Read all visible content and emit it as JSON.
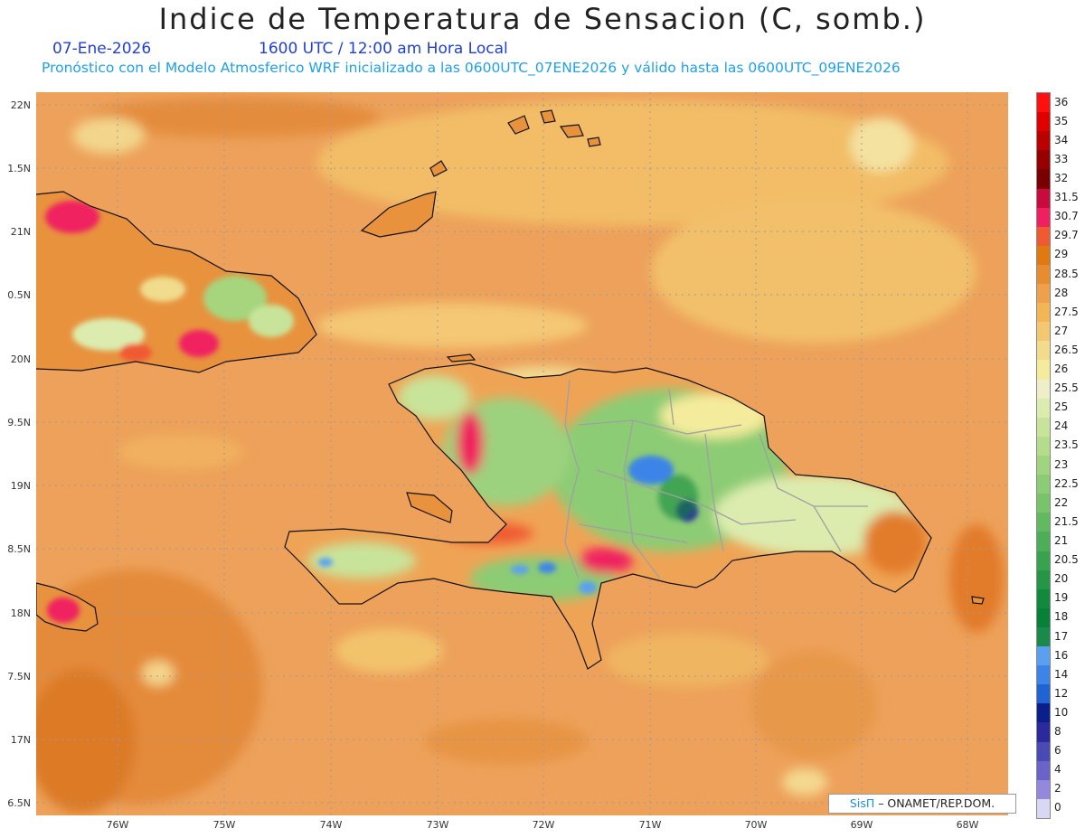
{
  "header": {
    "title": "Indice de Temperatura de Sensacion (C, somb.)",
    "date": "07-Ene-2026",
    "time": "1600 UTC / 12:00 am Hora Local",
    "subtitle": "Pronóstico con el Modelo Atmosferico WRF inicializado a las 0600UTC_07ENE2026 y válido hasta las  0600UTC_09ENE2026"
  },
  "map": {
    "lat_labels": [
      "22N",
      "1.5N",
      "21N",
      "0.5N",
      "20N",
      "9.5N",
      "19N",
      "8.5N",
      "18N",
      "7.5N",
      "17N",
      "6.5N"
    ],
    "lon_labels": [
      "76W",
      "75W",
      "74W",
      "73W",
      "72W",
      "71W",
      "70W",
      "69W",
      "68W"
    ],
    "colors": {
      "ocean": "#eda15a",
      "coast": "#111111",
      "borders": "#999999"
    }
  },
  "legend": {
    "levels": [
      "36",
      "35",
      "34",
      "33",
      "32",
      "31.5",
      "30.7",
      "29.7",
      "29",
      "28.5",
      "28",
      "27.5",
      "27",
      "26.5",
      "26",
      "25.5",
      "25",
      "24",
      "23.5",
      "23",
      "22.5",
      "22",
      "21.5",
      "21",
      "20.5",
      "20",
      "19",
      "18",
      "17",
      "16",
      "14",
      "12",
      "10",
      "8",
      "6",
      "4",
      "2",
      "0"
    ],
    "colors": [
      "#ff1010",
      "#e00000",
      "#bb0000",
      "#980000",
      "#7a0000",
      "#c80a3c",
      "#f02060",
      "#f05a30",
      "#e07a10",
      "#e88c30",
      "#f0a04a",
      "#f4b654",
      "#f4c870",
      "#f2dc8c",
      "#f4ec9c",
      "#eeeec8",
      "#dcecae",
      "#c8e49a",
      "#b4dc8a",
      "#a0d47e",
      "#8ccc74",
      "#78c46a",
      "#62ba60",
      "#4cae56",
      "#38a24e",
      "#249646",
      "#128a3e",
      "#08803a",
      "#1a8a4a",
      "#5aa0f0",
      "#3c84e8",
      "#1e64d4",
      "#0a1e8c",
      "#2a2a9c",
      "#4a4ab4",
      "#6a64c8",
      "#9488dc",
      "#d8d8f4"
    ]
  },
  "credit": {
    "logo": "SisΠ",
    "text": " – ONAMET/REP.DOM."
  }
}
